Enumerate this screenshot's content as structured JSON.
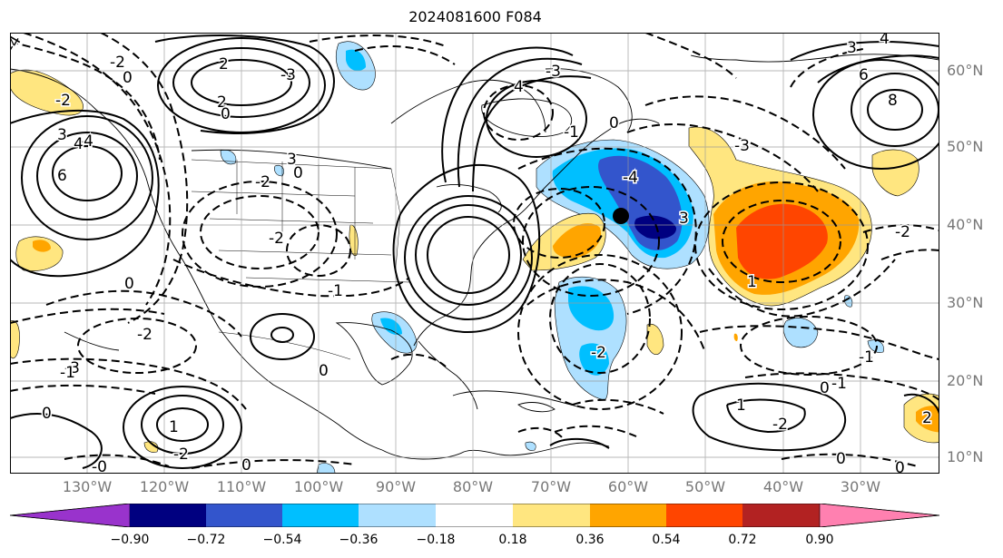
{
  "title": "2024081600 F084",
  "latitude_labels": [
    "60°N",
    "50°N",
    "40°N",
    "30°N",
    "20°N",
    "10°N"
  ],
  "longitude_labels": [
    "130°W",
    "120°W",
    "110°W",
    "100°W",
    "90°W",
    "80°W",
    "70°W",
    "60°W",
    "50°W",
    "40°W",
    "30°W"
  ],
  "colorbar": {
    "ticks": [
      "−0.90",
      "−0.72",
      "−0.54",
      "−0.36",
      "−0.18",
      "0.18",
      "0.36",
      "0.54",
      "0.72",
      "0.90"
    ],
    "colors": [
      "#9933cc",
      "#000080",
      "#3355cc",
      "#00bfff",
      "#aee0ff",
      "#ffffff",
      "#ffe680",
      "#ffa500",
      "#ff4500",
      "#b22222",
      "#ff80b0"
    ]
  },
  "contour_labels": [
    "-4",
    "-2",
    "0",
    "2",
    "6",
    "-2",
    "2",
    "0",
    "-3",
    "3",
    "-4",
    "4",
    "3",
    "0",
    "4",
    "-3",
    "0",
    "-1",
    "6",
    "8",
    "4",
    "3",
    "-4",
    "3",
    "-3",
    "-2",
    "-1",
    "-2",
    "0",
    "-2",
    "-3",
    "-1",
    "0",
    "1",
    "-2",
    "1",
    "-1",
    "-1",
    "-2",
    "1",
    "-2",
    "0",
    "2",
    "-2",
    "0",
    "0",
    "-0",
    "0",
    "0"
  ]
}
